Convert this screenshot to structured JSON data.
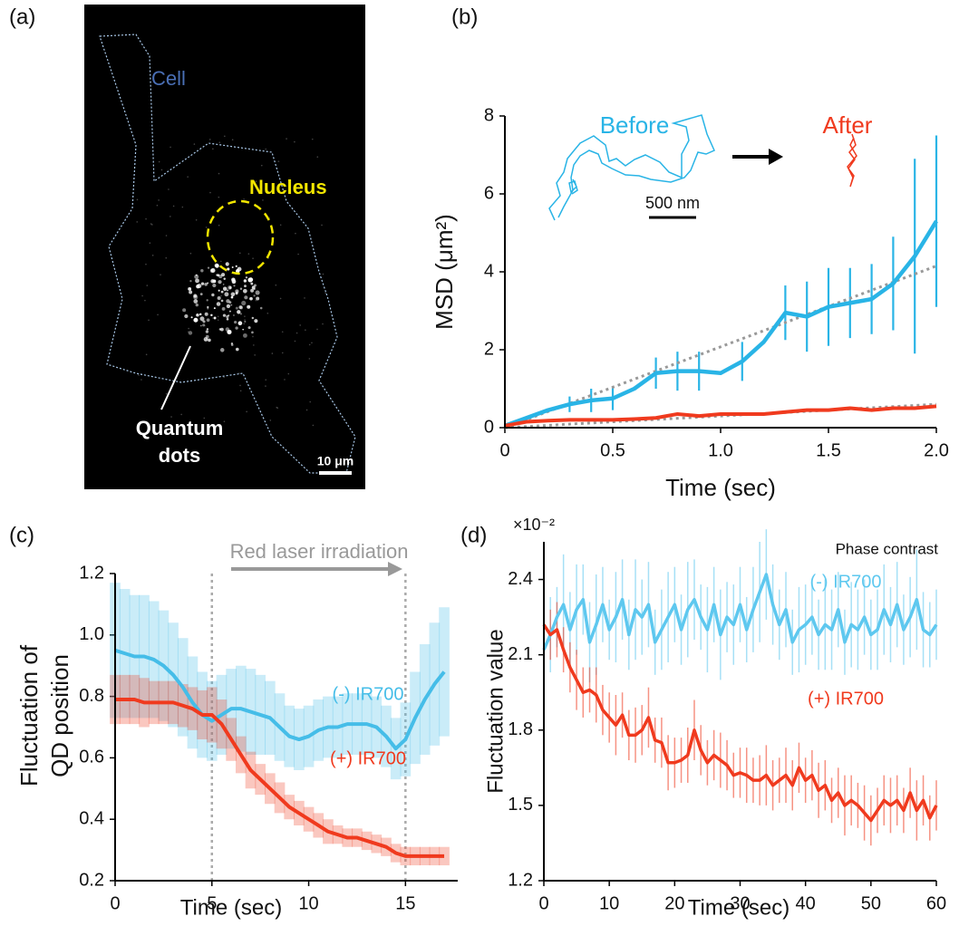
{
  "panel_labels": [
    "(a)",
    "(b)",
    "(c)",
    "(d)"
  ],
  "image_panel": {
    "annotations": {
      "cell": "Cell",
      "nucleus": "Nucleus",
      "quantum_dots": [
        "Quantum",
        "dots"
      ],
      "scale_bar": "10 μm"
    }
  },
  "chart_data": [
    {
      "type": "line",
      "xlabel": "Time (sec)",
      "ylabel": "MSD (μm²)",
      "x": [
        0,
        0.1,
        0.2,
        0.3,
        0.4,
        0.5,
        0.6,
        0.7,
        0.8,
        0.9,
        1.0,
        1.1,
        1.2,
        1.3,
        1.4,
        1.5,
        1.6,
        1.7,
        1.8,
        1.9,
        2.0
      ],
      "xlim": [
        0,
        2.0
      ],
      "xticks": [
        0,
        0.5,
        {
          "value": 1,
          "label": "1.0"
        },
        1.5,
        {
          "value": 2,
          "label": "2.0"
        }
      ],
      "ylim": [
        0,
        8
      ],
      "yticks": [
        0,
        2,
        4,
        6,
        8
      ],
      "series": [
        {
          "color": "#29b4e6",
          "values": [
            0.05,
            0.25,
            0.45,
            0.6,
            0.7,
            0.75,
            1.0,
            1.4,
            1.45,
            1.45,
            1.4,
            1.7,
            2.2,
            2.95,
            2.85,
            3.1,
            3.2,
            3.3,
            3.7,
            4.4,
            5.3
          ],
          "errors": [
            null,
            null,
            null,
            0.2,
            0.3,
            0.3,
            null,
            0.4,
            0.5,
            0.5,
            null,
            0.5,
            null,
            0.7,
            0.9,
            1.0,
            0.9,
            0.9,
            1.2,
            2.5,
            2.2
          ]
        },
        {
          "color": "#f03a1e",
          "values": [
            0.05,
            0.15,
            0.18,
            0.2,
            0.2,
            0.2,
            0.22,
            0.25,
            0.35,
            0.3,
            0.35,
            0.35,
            0.35,
            0.4,
            0.45,
            0.45,
            0.5,
            0.45,
            0.5,
            0.5,
            0.55
          ]
        }
      ],
      "fit_lines": [
        {
          "x": [
            0,
            2.0
          ],
          "values": [
            0,
            4.15
          ]
        },
        {
          "x": [
            0,
            2.0
          ],
          "values": [
            0,
            0.6
          ]
        }
      ],
      "fit_color": "#999999",
      "inset": {
        "before": "Before",
        "after": "After",
        "scale_bar": "500 nm"
      }
    },
    {
      "type": "line",
      "xlabel": "Time (sec)",
      "ylabel": [
        "Fluctuation of",
        "QD position"
      ],
      "x": [
        0,
        0.5,
        1,
        1.5,
        2,
        2.5,
        3,
        3.5,
        4,
        4.5,
        5,
        5.5,
        6,
        6.5,
        7,
        7.5,
        8,
        8.5,
        9,
        9.5,
        10,
        10.5,
        11,
        11.5,
        12,
        12.5,
        13,
        13.5,
        14,
        14.5,
        15,
        15.5,
        16,
        16.5,
        17
      ],
      "xlim": [
        0,
        17.7
      ],
      "xticks": [
        0,
        5,
        10,
        15
      ],
      "ylim": [
        0.2,
        1.2
      ],
      "yticks": [
        0.2,
        0.4,
        0.6,
        0.8,
        {
          "value": 1,
          "label": "1.0"
        },
        1.2
      ],
      "series": [
        {
          "name": "(-) IR700",
          "color": "#45bde8",
          "values": [
            0.95,
            0.94,
            0.93,
            0.93,
            0.92,
            0.9,
            0.87,
            0.83,
            0.78,
            0.74,
            0.72,
            0.74,
            0.76,
            0.76,
            0.75,
            0.74,
            0.73,
            0.7,
            0.67,
            0.66,
            0.67,
            0.69,
            0.7,
            0.7,
            0.71,
            0.71,
            0.71,
            0.7,
            0.67,
            0.63,
            0.66,
            0.73,
            0.79,
            0.84,
            0.88
          ],
          "errors": [
            0.22,
            0.21,
            0.2,
            0.2,
            0.19,
            0.18,
            0.17,
            0.16,
            0.15,
            0.14,
            0.13,
            0.13,
            0.13,
            0.14,
            0.14,
            0.13,
            0.12,
            0.11,
            0.1,
            0.1,
            0.1,
            0.1,
            0.1,
            0.1,
            0.1,
            0.1,
            0.1,
            0.1,
            0.1,
            0.1,
            0.12,
            0.15,
            0.18,
            0.2,
            0.21
          ]
        },
        {
          "name": "(+) IR700",
          "color": "#f03a1e",
          "values": [
            0.79,
            0.79,
            0.79,
            0.78,
            0.78,
            0.78,
            0.78,
            0.77,
            0.76,
            0.74,
            0.74,
            0.71,
            0.66,
            0.61,
            0.56,
            0.53,
            0.5,
            0.47,
            0.44,
            0.42,
            0.4,
            0.38,
            0.36,
            0.35,
            0.34,
            0.34,
            0.33,
            0.32,
            0.31,
            0.29,
            0.28,
            0.28,
            0.28,
            0.28,
            0.28
          ],
          "errors": [
            0.08,
            0.08,
            0.08,
            0.08,
            0.07,
            0.07,
            0.07,
            0.07,
            0.07,
            0.08,
            0.09,
            0.08,
            0.07,
            0.06,
            0.06,
            0.05,
            0.05,
            0.05,
            0.04,
            0.04,
            0.04,
            0.04,
            0.04,
            0.03,
            0.03,
            0.03,
            0.03,
            0.03,
            0.03,
            0.03,
            0.03,
            0.03,
            0.03,
            0.03,
            0.03
          ]
        }
      ],
      "vlines": [
        5,
        15
      ],
      "annotation": "Red laser irradiation"
    },
    {
      "type": "line",
      "xlabel": "Time (sec)",
      "ylabel": "Fluctuation value",
      "y_multiplier": "×10⁻²",
      "subtitle": "Phase contrast",
      "x": [
        0,
        1,
        2,
        3,
        4,
        5,
        6,
        7,
        8,
        9,
        10,
        11,
        12,
        13,
        14,
        15,
        16,
        17,
        18,
        19,
        20,
        21,
        22,
        23,
        24,
        25,
        26,
        27,
        28,
        29,
        30,
        31,
        32,
        33,
        34,
        35,
        36,
        37,
        38,
        39,
        40,
        41,
        42,
        43,
        44,
        45,
        46,
        47,
        48,
        49,
        50,
        51,
        52,
        53,
        54,
        55,
        56,
        57,
        58,
        59,
        60
      ],
      "xlim": [
        0,
        60
      ],
      "xticks": [
        0,
        10,
        20,
        30,
        40,
        50,
        60
      ],
      "ylim": [
        1.2,
        2.55
      ],
      "yticks": [
        1.2,
        1.5,
        1.8,
        2.1,
        2.4
      ],
      "series": [
        {
          "name": "(-) IR700",
          "color": "#5ec8ef",
          "values": [
            2.12,
            2.18,
            2.25,
            2.3,
            2.2,
            2.28,
            2.32,
            2.15,
            2.22,
            2.3,
            2.2,
            2.25,
            2.32,
            2.18,
            2.28,
            2.25,
            2.3,
            2.15,
            2.2,
            2.25,
            2.3,
            2.2,
            2.28,
            2.32,
            2.25,
            2.2,
            2.3,
            2.18,
            2.25,
            2.22,
            2.3,
            2.2,
            2.28,
            2.35,
            2.42,
            2.3,
            2.22,
            2.28,
            2.15,
            2.2,
            2.22,
            2.25,
            2.18,
            2.22,
            2.2,
            2.28,
            2.15,
            2.22,
            2.2,
            2.25,
            2.18,
            2.2,
            2.28,
            2.22,
            2.3,
            2.2,
            2.25,
            2.32,
            2.2,
            2.18,
            2.22
          ],
          "errors": [
            0.18,
            0.15,
            0.12,
            0.2,
            0.15,
            0.18,
            0.14,
            0.16,
            0.2,
            0.15,
            0.12,
            0.18,
            0.16,
            0.14,
            0.2,
            0.15,
            0.17,
            0.13,
            0.16,
            0.18,
            0.15,
            0.14,
            0.19,
            0.16,
            0.13,
            0.17,
            0.15,
            0.18,
            0.14,
            0.16,
            0.15,
            0.13,
            0.17,
            0.2,
            0.18,
            0.16,
            0.14,
            0.15,
            0.13,
            0.17,
            0.16,
            0.15,
            0.14,
            0.18,
            0.16,
            0.15,
            0.13,
            0.17,
            0.16,
            0.15,
            0.14,
            0.16,
            0.18,
            0.15,
            0.17,
            0.14,
            0.16,
            0.2,
            0.15,
            0.13,
            0.14
          ]
        },
        {
          "name": "(+) IR700",
          "color": "#f03a1e",
          "values": [
            2.22,
            2.18,
            2.2,
            2.12,
            2.05,
            2.0,
            1.95,
            1.96,
            1.94,
            1.88,
            1.85,
            1.82,
            1.86,
            1.78,
            1.78,
            1.8,
            1.85,
            1.76,
            1.75,
            1.67,
            1.67,
            1.68,
            1.7,
            1.8,
            1.72,
            1.67,
            1.7,
            1.68,
            1.66,
            1.62,
            1.63,
            1.62,
            1.6,
            1.6,
            1.62,
            1.58,
            1.6,
            1.62,
            1.58,
            1.65,
            1.6,
            1.62,
            1.56,
            1.58,
            1.52,
            1.55,
            1.5,
            1.52,
            1.5,
            1.47,
            1.44,
            1.48,
            1.52,
            1.5,
            1.52,
            1.48,
            1.55,
            1.48,
            1.52,
            1.45,
            1.5
          ],
          "errors": [
            0.12,
            0.1,
            0.11,
            0.09,
            0.1,
            0.12,
            0.1,
            0.09,
            0.11,
            0.1,
            0.1,
            0.12,
            0.09,
            0.1,
            0.11,
            0.1,
            0.12,
            0.09,
            0.1,
            0.11,
            0.1,
            0.09,
            0.11,
            0.12,
            0.1,
            0.09,
            0.1,
            0.11,
            0.1,
            0.09,
            0.1,
            0.11,
            0.09,
            0.1,
            0.12,
            0.1,
            0.09,
            0.11,
            0.1,
            0.1,
            0.09,
            0.1,
            0.11,
            0.1,
            0.09,
            0.1,
            0.12,
            0.1,
            0.09,
            0.11,
            0.1,
            0.09,
            0.1,
            0.11,
            0.1,
            0.09,
            0.1,
            0.12,
            0.1,
            0.09,
            0.1
          ]
        }
      ]
    }
  ]
}
